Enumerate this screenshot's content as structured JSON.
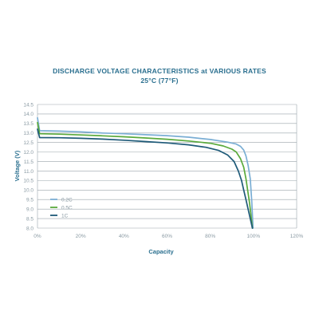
{
  "chart_data": {
    "type": "line",
    "title": "DISCHARGE VOLTAGE CHARACTERISTICS at VARIOUS RATES",
    "subtitle": "25°C (77°F)",
    "xlabel": "Capacity",
    "ylabel": "Voltage (V)",
    "xlim": [
      0,
      120
    ],
    "ylim": [
      8.0,
      14.5
    ],
    "x_ticks": [
      0,
      20,
      40,
      60,
      80,
      100,
      120
    ],
    "x_tick_labels": [
      "0%",
      "20%",
      "40%",
      "60%",
      "80%",
      "100%",
      "120%"
    ],
    "y_ticks": [
      8.0,
      8.5,
      9.0,
      9.5,
      10.0,
      10.5,
      11.0,
      11.5,
      12.0,
      12.5,
      13.0,
      13.5,
      14.0,
      14.5
    ],
    "y_tick_labels": [
      "8.0",
      "8.5",
      "9.0",
      "9.5",
      "10.0",
      "10.5",
      "11.0",
      "11.5",
      "12.0",
      "12.5",
      "13.0",
      "13.5",
      "14.0",
      "14.5"
    ],
    "grid": "horizontal",
    "legend_position": "bottom-left",
    "series": [
      {
        "name": "0.2C",
        "color": "#7aaed4",
        "x": [
          0,
          1,
          10,
          20,
          30,
          40,
          50,
          60,
          70,
          80,
          88,
          92,
          94,
          95.5,
          96.5,
          97.5,
          98.5,
          99.2,
          99.8
        ],
        "y": [
          13.8,
          13.12,
          13.1,
          13.06,
          13.0,
          12.96,
          12.91,
          12.86,
          12.78,
          12.66,
          12.52,
          12.42,
          12.3,
          12.1,
          11.8,
          11.3,
          10.6,
          9.4,
          8.0
        ]
      },
      {
        "name": "0.5C",
        "color": "#5aaa3c",
        "x": [
          0,
          1,
          10,
          20,
          30,
          40,
          50,
          60,
          70,
          80,
          86,
          90,
          92,
          94,
          95.5,
          96.5,
          97.3,
          98.2,
          99.5
        ],
        "y": [
          13.55,
          12.96,
          12.94,
          12.9,
          12.85,
          12.8,
          12.74,
          12.67,
          12.58,
          12.46,
          12.32,
          12.15,
          12.0,
          11.65,
          11.2,
          10.6,
          10.0,
          9.3,
          8.0
        ]
      },
      {
        "name": "1C",
        "color": "#1e5a78",
        "x": [
          0,
          1,
          10,
          20,
          30,
          40,
          50,
          60,
          70,
          78,
          84,
          88,
          91,
          93,
          94.5,
          95.5,
          96.5,
          97.5,
          99.5
        ],
        "y": [
          13.2,
          12.76,
          12.75,
          12.72,
          12.68,
          12.62,
          12.55,
          12.48,
          12.38,
          12.25,
          12.08,
          11.85,
          11.5,
          11.0,
          10.5,
          10.0,
          9.5,
          9.0,
          8.0
        ]
      }
    ]
  }
}
